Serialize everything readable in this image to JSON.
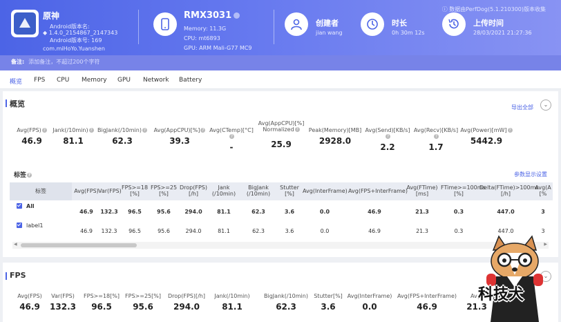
{
  "app": {
    "name": "原神",
    "version_label": "Android版本名:",
    "version_name": "1.4.0_2154867_2147343",
    "version_code": "Android版本号: 169",
    "package": "com.miHoYo.Yuanshen"
  },
  "device": {
    "name": "RMX3031",
    "memory": "Memory: 11.3G",
    "cpu": "CPU: mt6893",
    "gpu": "GPU: ARM Mali-G77 MC9"
  },
  "creator": {
    "title": "创建者",
    "value": "jian wang"
  },
  "duration": {
    "title": "时长",
    "value": "0h 30m 12s"
  },
  "upload": {
    "title": "上传时间",
    "value": "28/03/2021 21:27:36"
  },
  "data_source": "数据由PerfDog(5.1.210300)版本收集",
  "remark": {
    "label": "备注:",
    "placeholder": "添加备注，不超过200个字符"
  },
  "tabs": [
    "概览",
    "FPS",
    "CPU",
    "Memory",
    "GPU",
    "Network",
    "Battery"
  ],
  "overview": {
    "title": "概览",
    "export_label": "导出全部",
    "expand_icon": "chevron-down-icon",
    "stats": [
      {
        "label": "Avg(FPS)",
        "value": "46.9"
      },
      {
        "label": "Jank(/10min)",
        "value": "81.1"
      },
      {
        "label": "BigJank(/10min)",
        "value": "62.3"
      },
      {
        "label": "Avg(AppCPU)[%]",
        "value": "39.3"
      },
      {
        "label": "Avg(CTemp)[°C]",
        "value": "-"
      },
      {
        "label": "Avg(AppCPU)[%] Normalized",
        "value": "25.9"
      },
      {
        "label": "Peak(Memory)[MB]",
        "value": "2928.0"
      },
      {
        "label": "Avg(Send)[KB/s]",
        "value": "2.2"
      },
      {
        "label": "Avg(Recv)[KB/s]",
        "value": "1.7"
      },
      {
        "label": "Avg(Power)[mW]",
        "value": "5442.9"
      }
    ]
  },
  "labels": {
    "title": "标签",
    "settings_link": "参数显示设置",
    "columns": [
      "标签",
      "Avg(FPS)",
      "Var(FPS)",
      "FPS>=18 [%]",
      "FPS>=25 [%]",
      "Drop(FPS) [/h]",
      "Jank (/10min)",
      "BigJank (/10min)",
      "Stutter [%]",
      "Avg(InterFrame)",
      "Avg(FPS+InterFrame)",
      "Avg(FTime) [ms]",
      "FTime>=100ms [%]",
      "Delta(FTime)>100ms [/h]",
      "Avg(A [%"
    ],
    "rows": [
      {
        "name": "All",
        "values": [
          "46.9",
          "132.3",
          "96.5",
          "95.6",
          "294.0",
          "81.1",
          "62.3",
          "3.6",
          "0.0",
          "46.9",
          "21.3",
          "0.3",
          "447.0",
          "3"
        ]
      },
      {
        "name": "label1",
        "values": [
          "46.9",
          "132.3",
          "96.5",
          "95.6",
          "294.0",
          "81.1",
          "62.3",
          "3.6",
          "0.0",
          "46.9",
          "21.3",
          "0.3",
          "447.0",
          "3"
        ]
      }
    ]
  },
  "fps": {
    "title": "FPS",
    "stats": [
      {
        "label": "Avg(FPS)",
        "value": "46.9"
      },
      {
        "label": "Var(FPS)",
        "value": "132.3"
      },
      {
        "label": "FPS>=18[%]",
        "value": "96.5"
      },
      {
        "label": "FPS>=25[%]",
        "value": "95.6"
      },
      {
        "label": "Drop(FPS)[/h]",
        "value": "294.0"
      },
      {
        "label": "Jank(/10min)",
        "value": "81.1"
      },
      {
        "label": "BigJank(/10min)",
        "value": "62.3"
      },
      {
        "label": "Stutter[%]",
        "value": "3.6"
      },
      {
        "label": "Avg(InterFrame)",
        "value": "0.0"
      },
      {
        "label": "Avg(FPS+InterFrame)",
        "value": "46.9"
      },
      {
        "label": "Avg(",
        "value": "21.3"
      }
    ]
  },
  "watermark": "科技犬",
  "colors": {
    "accent": "#4c64e6",
    "header_start": "#4c64e6",
    "header_end": "#8893f3"
  }
}
